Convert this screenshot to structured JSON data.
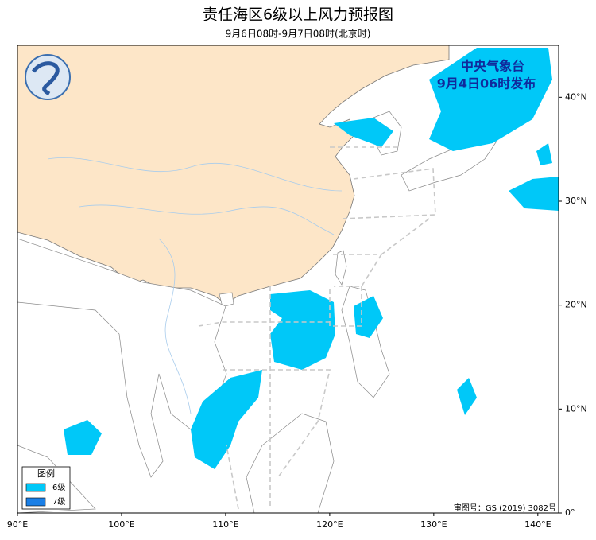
{
  "header": {
    "title": "责任海区6级以上风力预报图",
    "subtitle": "9月6日08时-9月7日08时(北京时)"
  },
  "issuer": {
    "name": "中央气象台",
    "time": "9月4日06时发布"
  },
  "legend": {
    "title": "图例",
    "items": [
      {
        "label": "6级",
        "color": "#00c8f8"
      },
      {
        "label": "7级",
        "color": "#1a7fe6"
      }
    ]
  },
  "map": {
    "lon_range": [
      90,
      142
    ],
    "lat_range": [
      0,
      45
    ],
    "lon_ticks": [
      {
        "value": 90,
        "label": "90°E"
      },
      {
        "value": 100,
        "label": "100°E"
      },
      {
        "value": 110,
        "label": "110°E"
      },
      {
        "value": 120,
        "label": "120°E"
      },
      {
        "value": 130,
        "label": "130°E"
      },
      {
        "value": 140,
        "label": "140°E"
      }
    ],
    "lat_ticks": [
      {
        "value": 0,
        "label": "0°"
      },
      {
        "value": 10,
        "label": "10°N"
      },
      {
        "value": 20,
        "label": "20°N"
      },
      {
        "value": 30,
        "label": "30°N"
      },
      {
        "value": 40,
        "label": "40°N"
      }
    ]
  },
  "approval": "审图号：GS (2019) 3082号"
}
